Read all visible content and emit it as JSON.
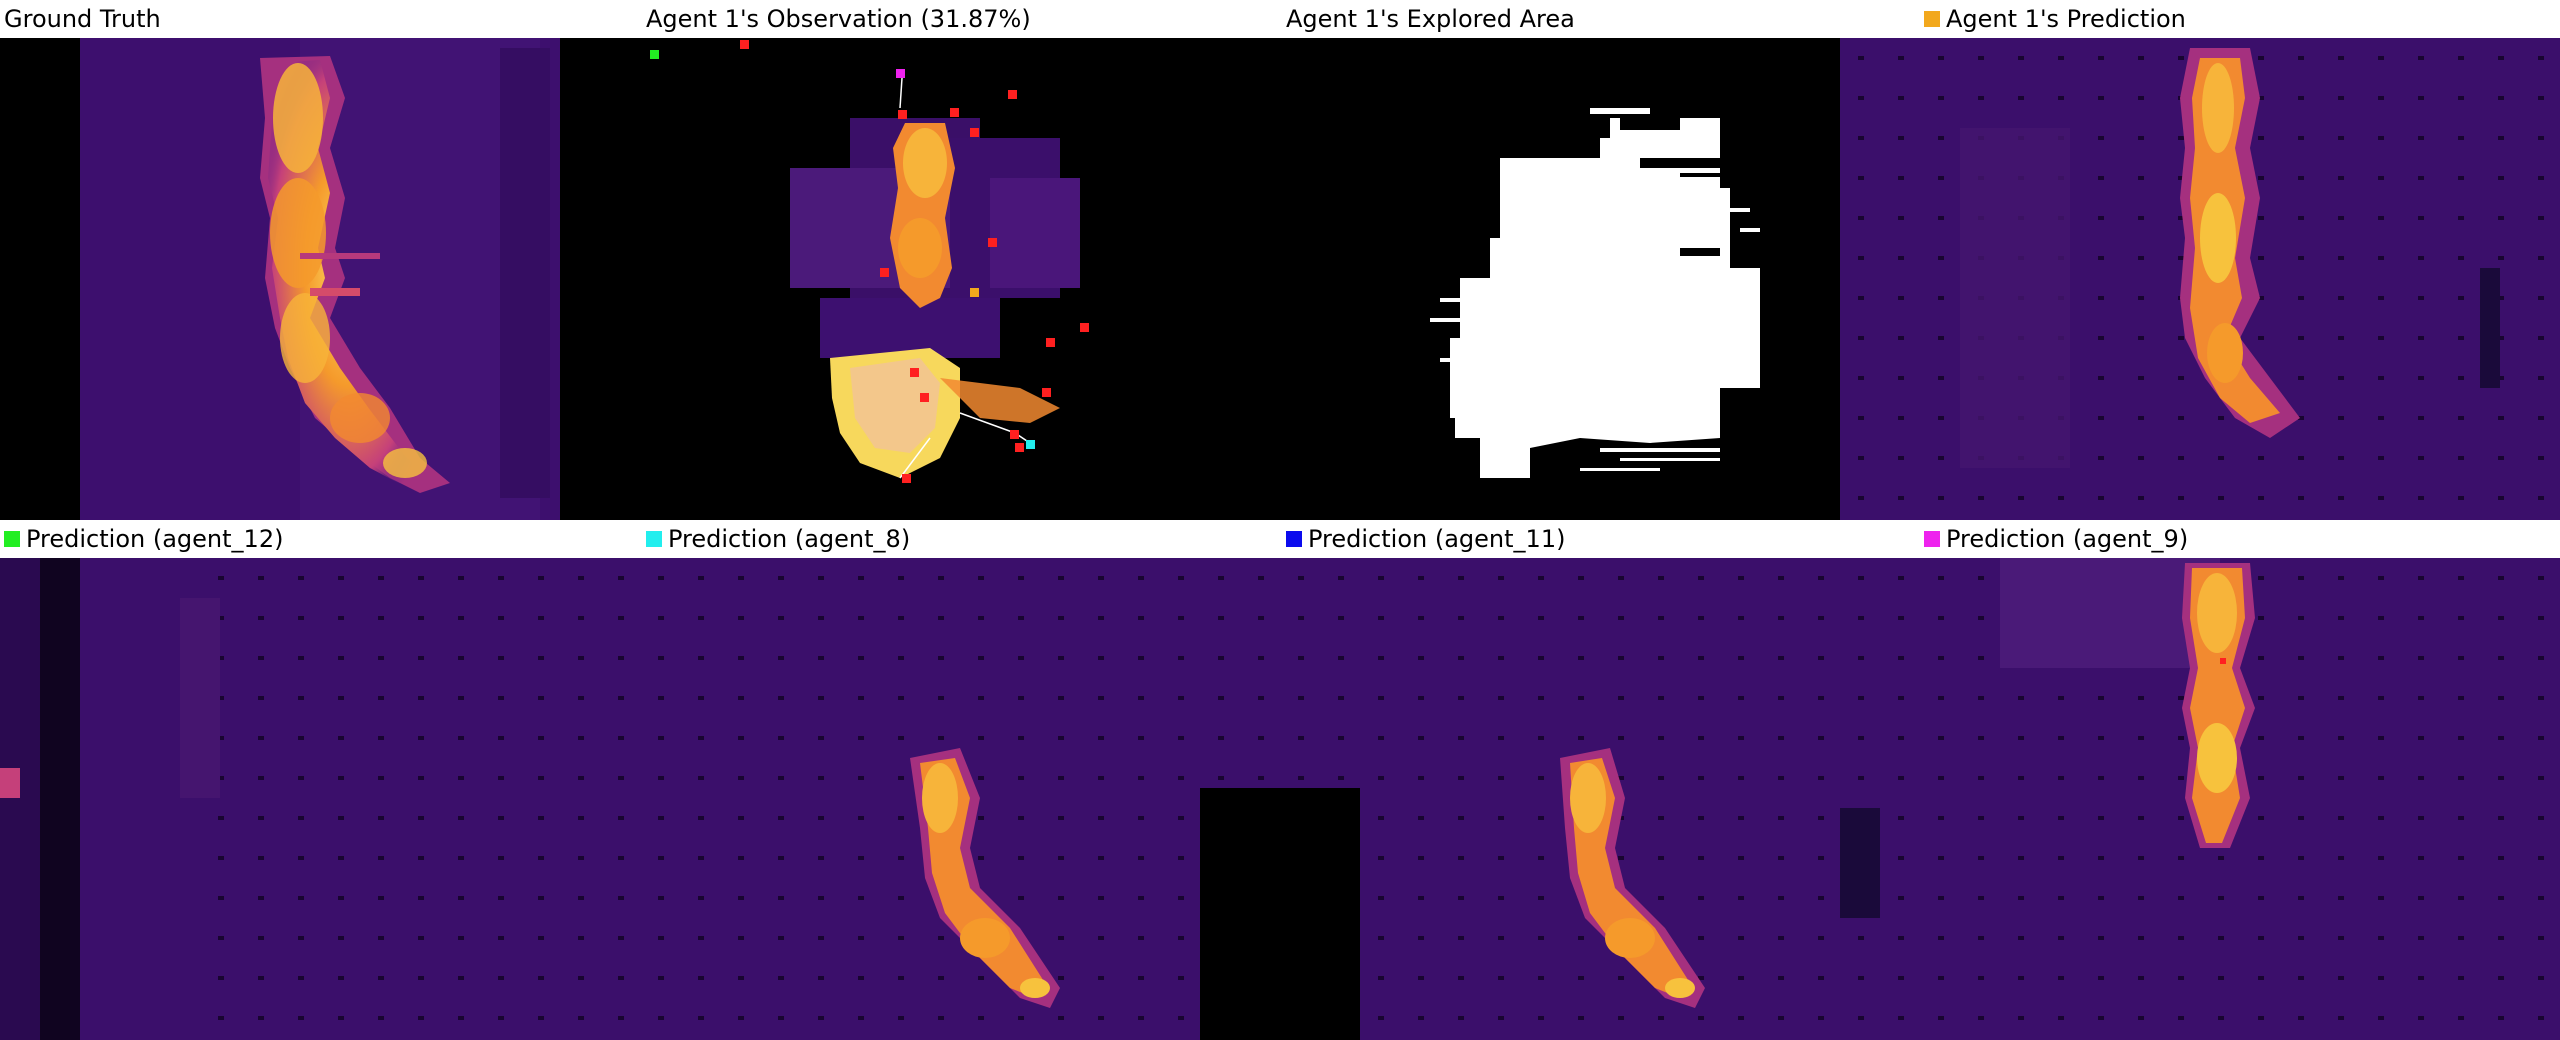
{
  "panels": {
    "ground_truth": {
      "label": "Ground Truth"
    },
    "observation": {
      "label": "Agent 1's Observation (31.87%)"
    },
    "explored": {
      "label": "Agent 1's Explored Area"
    },
    "agent1_pred": {
      "label": "Agent 1's Prediction",
      "color": "#f2a81d"
    },
    "agent12_pred": {
      "label": "Prediction (agent_12)",
      "color": "#22ee22"
    },
    "agent8_pred": {
      "label": "Prediction (agent_8)",
      "color": "#22eeee"
    },
    "agent11_pred": {
      "label": "Prediction (agent_11)",
      "color": "#0b0bee"
    },
    "agent9_pred": {
      "label": "Prediction (agent_9)",
      "color": "#ee22ee"
    }
  },
  "colors": {
    "background_purple": "#3b0f6b",
    "fire_orange": "#f08a2a",
    "fire_yellow": "#f7d13d",
    "marker_red": "#ff2020"
  }
}
